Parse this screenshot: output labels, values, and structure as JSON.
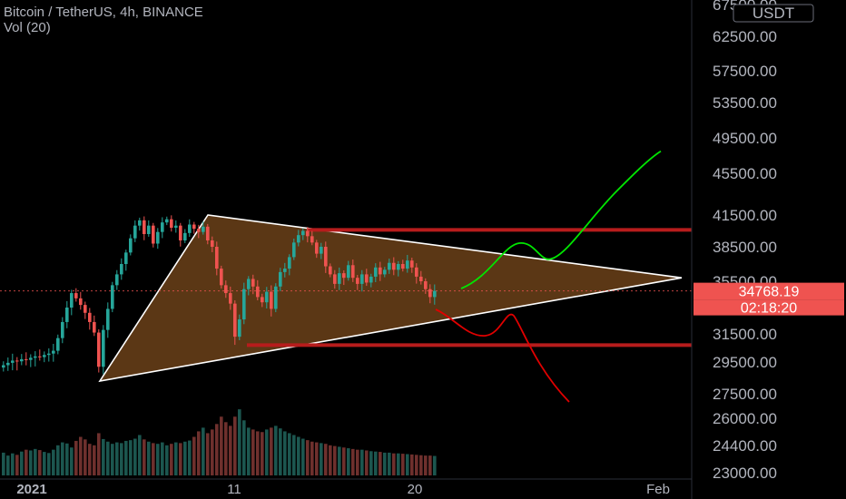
{
  "header": {
    "title": "Bitcoin / TetherUS, 4h, BINANCE",
    "indicator": "Vol (20)"
  },
  "colors": {
    "background": "#000000",
    "candle_up": "#26a69a",
    "candle_down": "#ef5350",
    "triangle_fill": "#7a4a1c",
    "triangle_stroke": "#ffffff",
    "level_line": "#b71c1c",
    "bull_path": "#00e600",
    "bear_path": "#e00000",
    "price_badge": "#ef5350",
    "axis_text": "#b2b5be"
  },
  "chart_data": {
    "type": "candlestick",
    "symbol": "Bitcoin / TetherUS",
    "interval": "4h",
    "exchange": "BINANCE",
    "currency_label": "USDT",
    "y_ticks": [
      "67500.00",
      "62500.00",
      "57500.00",
      "53500.00",
      "49500.00",
      "45500.00",
      "41500.00",
      "38500.00",
      "35500.00",
      "31500.00",
      "29500.00",
      "27500.00",
      "26000.00",
      "24400.00",
      "23000.00"
    ],
    "x_ticks": [
      "2021",
      "11",
      "20",
      "Feb"
    ],
    "last_price": "34768.19",
    "countdown": "02:18:20",
    "resistance_level": 40100,
    "support_level": 30700,
    "triangle": {
      "apex_top": {
        "date": "2021-01-08",
        "price": 41500
      },
      "base_low": {
        "date": "2021-01-04",
        "price": 28300
      },
      "converge": {
        "date": "2021-01-28",
        "price": 35800
      }
    },
    "projection_bull_end": 48000,
    "projection_bear_end": 27000,
    "price_series_close": [
      29300,
      29450,
      29600,
      29550,
      29700,
      29650,
      29800,
      29900,
      29850,
      30000,
      30100,
      30300,
      31200,
      32400,
      33500,
      34600,
      34200,
      33700,
      33100,
      32400,
      31600,
      29200,
      31800,
      33400,
      35200,
      36100,
      37000,
      38000,
      39300,
      40500,
      41000,
      39700,
      40500,
      38800,
      39900,
      40800,
      41100,
      40300,
      40500,
      39100,
      39800,
      40600,
      40200,
      39900,
      40400,
      39100,
      38500,
      36600,
      35200,
      34600,
      33800,
      31300,
      32600,
      34900,
      35700,
      35100,
      34300,
      33900,
      34700,
      33400,
      35100,
      36300,
      36600,
      37600,
      38900,
      39600,
      40000,
      39500,
      38900,
      37900,
      38500,
      36800,
      36100,
      35300,
      36200,
      35800,
      36900,
      35800,
      35300,
      36100,
      35400,
      35900,
      36700,
      36100,
      36500,
      37100,
      36500,
      37000,
      36600,
      37300,
      36700,
      35900,
      35500,
      34900,
      34300,
      34768
    ],
    "volume_series": [
      620,
      540,
      600,
      560,
      650,
      700,
      680,
      720,
      690,
      640,
      610,
      700,
      820,
      900,
      870,
      760,
      940,
      1050,
      980,
      860,
      820,
      1150,
      990,
      920,
      860,
      900,
      880,
      940,
      960,
      1000,
      1100,
      980,
      920,
      880,
      860,
      900,
      820,
      860,
      900,
      880,
      920,
      950,
      1050,
      1200,
      1300,
      1150,
      1250,
      1400,
      1600,
      1450,
      1350,
      1600,
      1800,
      1500,
      1300,
      1250,
      1200,
      1180,
      1250,
      1300,
      1350,
      1280,
      1200,
      1150,
      1100,
      1050,
      1000,
      960,
      920,
      900,
      880,
      860,
      820,
      800,
      780,
      760,
      740,
      720,
      700,
      700,
      680,
      660,
      650,
      640,
      620,
      620,
      600,
      600,
      590,
      580,
      570,
      560,
      550,
      540,
      540,
      530
    ]
  }
}
